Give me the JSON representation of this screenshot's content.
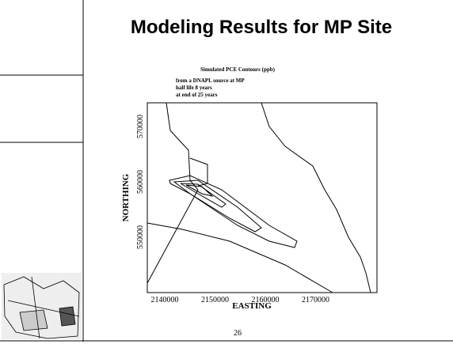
{
  "title": "Modeling Results for MP Site",
  "plot": {
    "title": "Simulated PCE Contours (ppb)",
    "notes": [
      "from a DNAPL source at MP",
      "half life 8 years",
      "at end of 25 years"
    ],
    "x_label": "EASTING",
    "y_label": "NORTHING",
    "xticks": [
      "2140000",
      "2150000",
      "2160000",
      "2170000"
    ],
    "yticks": [
      "570000",
      "560000",
      "550000"
    ]
  },
  "page_number": "26"
}
